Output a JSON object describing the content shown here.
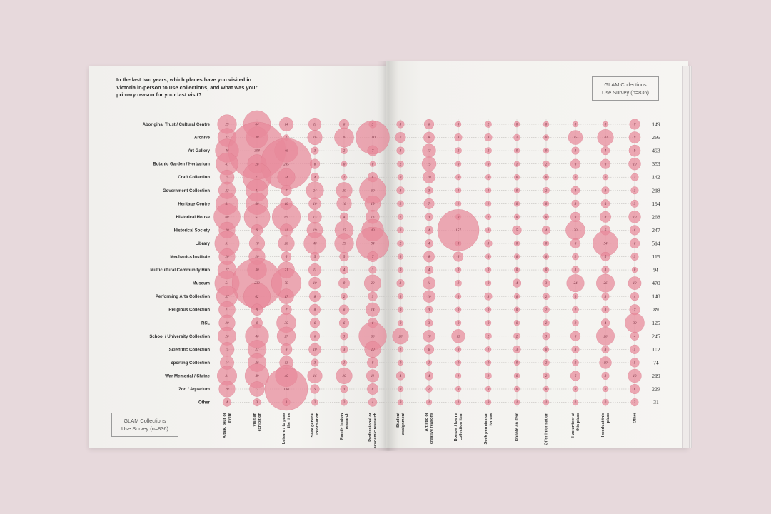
{
  "question": "In the last two years, which places have you visited in Victoria in-person to use collections, and what was your primary reason for your last visit?",
  "survey_label": {
    "line1": "GLAM Collections",
    "line2": "Use Survey (n=836)"
  },
  "colors": {
    "bubble": "#e8899a",
    "bubble_stroke": "#d97487",
    "text": "#2e2e2e",
    "background": "#e7d9dc"
  },
  "chart_data": {
    "type": "bubble-matrix",
    "rows": [
      "Aboriginal Trust / Cultural Centre",
      "Archive",
      "Art Gallery",
      "Botanic Garden / Herbarium",
      "Craft Collection",
      "Government Collection",
      "Heritage Centre",
      "Historical House",
      "Historical Society",
      "Library",
      "Mechanics Institute",
      "Multicultural Community Hub",
      "Museum",
      "Performing Arts Collection",
      "Religious Collection",
      "RSL",
      "School / University Collection",
      "Scientific Collection",
      "Sporting Collection",
      "War Memorial / Shrine",
      "Zoo / Aquarium",
      "Other"
    ],
    "columns": [
      "A talk, tour or event",
      "Visit an exhibition",
      "Leisure / to pass the time",
      "Seek general information",
      "Family history research",
      "Professional or academic research",
      "Student assignment",
      "Artistic or creative reasons",
      "Borrow / loan a collection item",
      "Seek permission for use",
      "Donate an item",
      "Offer information",
      "I volunteer at this place",
      "I work at this place",
      "Other"
    ],
    "totals": [
      149,
      266,
      493,
      353,
      142,
      218,
      194,
      268,
      247,
      514,
      115,
      94,
      470,
      148,
      89,
      125,
      245,
      102,
      74,
      219,
      229,
      31
    ],
    "values": [
      [
        29,
        64,
        14,
        11,
        6,
        3,
        3,
        6,
        0,
        2,
        0,
        0,
        0,
        0,
        7
      ],
      [
        27,
        38,
        1,
        16,
        30,
        100,
        7,
        8,
        3,
        3,
        2,
        0,
        15,
        20,
        9
      ],
      [
        46,
        308,
        46,
        3,
        2,
        7,
        3,
        13,
        2,
        2,
        0,
        0,
        3,
        4,
        9
      ],
      [
        41,
        28,
        245,
        6,
        0,
        0,
        2,
        15,
        0,
        0,
        1,
        2,
        6,
        6,
        10
      ],
      [
        15,
        71,
        24,
        4,
        1,
        6,
        0,
        10,
        0,
        0,
        0,
        0,
        0,
        0,
        3
      ],
      [
        22,
        41,
        7,
        24,
        20,
        60,
        3,
        3,
        1,
        1,
        0,
        2,
        4,
        3,
        3
      ],
      [
        41,
        40,
        10,
        10,
        16,
        19,
        2,
        7,
        1,
        1,
        0,
        0,
        3,
        4,
        3
      ],
      [
        60,
        57,
        69,
        13,
        4,
        13,
        1,
        3,
        0,
        1,
        0,
        0,
        6,
        8,
        10
      ],
      [
        20,
        9,
        11,
        19,
        27,
        40,
        2,
        4,
        157,
        1,
        5,
        4,
        30,
        6,
        6
      ],
      [
        51,
        18,
        20,
        40,
        29,
        94,
        2,
        4,
        0,
        3,
        0,
        0,
        6,
        54,
        6
      ],
      [
        20,
        20,
        6,
        5,
        5,
        7,
        0,
        8,
        6,
        0,
        0,
        0,
        2,
        5,
        3
      ],
      [
        27,
        30,
        21,
        11,
        4,
        3,
        0,
        4,
        0,
        0,
        0,
        0,
        3,
        3,
        0
      ],
      [
        51,
        230,
        78,
        10,
        8,
        22,
        3,
        11,
        2,
        0,
        4,
        3,
        24,
        26,
        12
      ],
      [
        37,
        62,
        17,
        8,
        2,
        5,
        0,
        10,
        0,
        3,
        0,
        2,
        0,
        3,
        4
      ],
      [
        21,
        9,
        7,
        8,
        6,
        14,
        0,
        3,
        0,
        0,
        0,
        2,
        2,
        3,
        7
      ],
      [
        20,
        8,
        30,
        6,
        6,
        6,
        0,
        3,
        0,
        0,
        0,
        2,
        2,
        4,
        30
      ],
      [
        26,
        46,
        27,
        6,
        3,
        66,
        20,
        10,
        13,
        2,
        2,
        3,
        6,
        26,
        4
      ],
      [
        15,
        27,
        9,
        10,
        3,
        20,
        1,
        6,
        0,
        1,
        3,
        0,
        3,
        3,
        5
      ],
      [
        14,
        26,
        13,
        3,
        1,
        8,
        0,
        1,
        0,
        0,
        0,
        2,
        2,
        10,
        5
      ],
      [
        31,
        49,
        40,
        16,
        20,
        11,
        4,
        4,
        1,
        2,
        0,
        2,
        6,
        3,
        13
      ],
      [
        20,
        17,
        168,
        5,
        3,
        8,
        0,
        2,
        0,
        0,
        0,
        0,
        0,
        0,
        6
      ],
      [
        4,
        3,
        3,
        2,
        2,
        4,
        0,
        1,
        1,
        0,
        1,
        1,
        1,
        2,
        3
      ]
    ]
  }
}
